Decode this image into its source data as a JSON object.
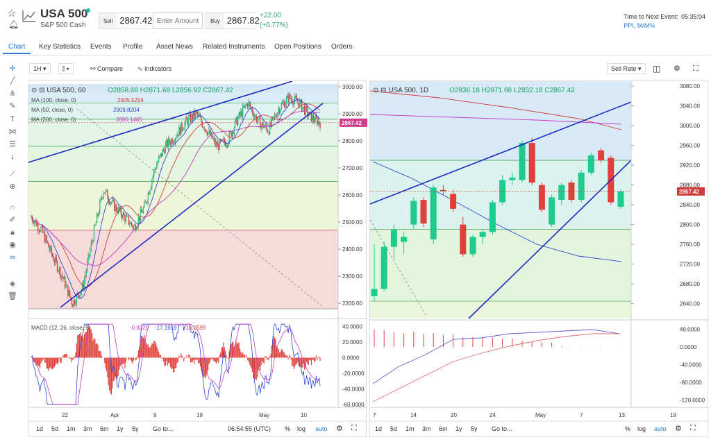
{
  "header": {
    "instrument": "USA 500",
    "subtitle": "S&P 500 Cash",
    "sell_label": "Sell",
    "sell_price": "2867.42",
    "amount_placeholder": "Enter Amount",
    "buy_label": "Buy",
    "buy_price": "2867.82",
    "change_abs": "+22.00",
    "change_pct": "(+0.77%)",
    "event_label": "Time to Next Event:",
    "event_time": "05:35:04",
    "event_link": "PPI, M/M%"
  },
  "tabs": [
    "Chart",
    "Key Statistics",
    "Events",
    "Profile",
    "Asset News",
    "Related Instruments",
    "Open Positions",
    "Orders"
  ],
  "chart_toolbar": {
    "interval": "1H",
    "compare": "Compare",
    "indicators": "Indicators",
    "sell_rate": "Sell Rate"
  },
  "colors": {
    "accent": "#2b7bd5",
    "bull": "#1ecb8c",
    "bear": "#e0403a",
    "trend": "#1a2bbf"
  },
  "left_chart": {
    "legend": {
      "symbol": "USA 500, 60",
      "O": "2858.68",
      "H": "2871.68",
      "L": "2856.92",
      "C": "2867.42",
      "ma100_label": "MA (100, close, 0)",
      "ma100_value": "2905.5254",
      "ma50_label": "MA (50, close, 0)",
      "ma50_value": "2909.8204",
      "ma200_label": "MA (200, close, 0)",
      "ma200_value": "2880.1405"
    },
    "price_ticks": [
      "3000.00",
      "2900.00",
      "2800.00",
      "2700.00",
      "2600.00",
      "2500.00",
      "2400.00",
      "2300.00",
      "2200.00"
    ],
    "last_price": "2867.42",
    "macd": {
      "label": "MACD (12, 26, close, 9)",
      "v1": "-0.8320",
      "v2": "-17.1919",
      "v3": "-16.3599",
      "ticks": [
        "40.0000",
        "20.0000",
        "0.0000",
        "-20.0000",
        "-40.0000",
        "-60.0000"
      ]
    },
    "x_ticks": [
      "22",
      "Apr",
      "9",
      "19",
      "May",
      "10"
    ],
    "ranges": [
      "1d",
      "5d",
      "1m",
      "3m",
      "6m",
      "1y",
      "5y",
      "Go to..."
    ],
    "clock": "06:54:55 (UTC)",
    "opts": [
      "%",
      "log",
      "auto"
    ]
  },
  "right_chart": {
    "legend": {
      "symbol": "USA 500, 1D",
      "O": "2836.18",
      "H": "2871.68",
      "L": "2832.18",
      "C": "2867.42"
    },
    "price_ticks": [
      "3080.00",
      "3040.00",
      "3000.00",
      "2960.00",
      "2920.00",
      "2880.00",
      "2840.00",
      "2800.00",
      "2760.00",
      "2720.00",
      "2680.00",
      "2640.00"
    ],
    "last_price": "2867.42",
    "macd_ticks": [
      "40.0000",
      "0.0000",
      "-40.0000",
      "-80.0000",
      "-120.0000"
    ],
    "x_ticks": [
      "7",
      "14",
      "20",
      "24",
      "May",
      "7",
      "13",
      "19"
    ],
    "ranges": [
      "1d",
      "5d",
      "1m",
      "3m",
      "6m",
      "1y",
      "5y",
      "Go to..."
    ],
    "opts": [
      "%",
      "log",
      "auto"
    ]
  },
  "chart_data": [
    {
      "type": "candlestick",
      "title": "USA 500, 60",
      "ylim": [
        2180,
        3010
      ],
      "x_ticks": [
        "22",
        "Apr",
        "9",
        "19",
        "May",
        "10"
      ],
      "close_path": [
        2520,
        2470,
        2380,
        2300,
        2200,
        2260,
        2450,
        2620,
        2560,
        2520,
        2480,
        2560,
        2700,
        2780,
        2820,
        2870,
        2900,
        2840,
        2780,
        2800,
        2880,
        2940,
        2870,
        2840,
        2920,
        2960,
        2940,
        2890,
        2867
      ]
    },
    {
      "type": "candlestick",
      "title": "USA 500, 1D",
      "ylim": [
        2610,
        3090
      ],
      "x_ticks": [
        "7",
        "14",
        "20",
        "24",
        "May",
        "7",
        "13",
        "19"
      ],
      "candles": [
        {
          "o": 2655,
          "c": 2670,
          "h": 2760,
          "l": 2645
        },
        {
          "o": 2670,
          "c": 2755,
          "h": 2765,
          "l": 2665
        },
        {
          "o": 2755,
          "c": 2790,
          "h": 2800,
          "l": 2730
        },
        {
          "o": 2765,
          "c": 2775,
          "h": 2785,
          "l": 2740
        },
        {
          "o": 2800,
          "c": 2848,
          "h": 2855,
          "l": 2790
        },
        {
          "o": 2850,
          "c": 2802,
          "h": 2855,
          "l": 2795
        },
        {
          "o": 2770,
          "c": 2875,
          "h": 2880,
          "l": 2760
        },
        {
          "o": 2870,
          "c": 2868,
          "h": 2880,
          "l": 2860
        },
        {
          "o": 2862,
          "c": 2832,
          "h": 2870,
          "l": 2825
        },
        {
          "o": 2800,
          "c": 2740,
          "h": 2815,
          "l": 2735
        },
        {
          "o": 2740,
          "c": 2775,
          "h": 2780,
          "l": 2735
        },
        {
          "o": 2775,
          "c": 2785,
          "h": 2790,
          "l": 2760
        },
        {
          "o": 2785,
          "c": 2845,
          "h": 2850,
          "l": 2780
        },
        {
          "o": 2845,
          "c": 2890,
          "h": 2900,
          "l": 2840
        },
        {
          "o": 2890,
          "c": 2895,
          "h": 2905,
          "l": 2880
        },
        {
          "o": 2890,
          "c": 2965,
          "h": 2970,
          "l": 2885
        },
        {
          "o": 2965,
          "c": 2885,
          "h": 2975,
          "l": 2880
        },
        {
          "o": 2880,
          "c": 2830,
          "h": 2885,
          "l": 2825
        },
        {
          "o": 2800,
          "c": 2855,
          "h": 2860,
          "l": 2795
        },
        {
          "o": 2850,
          "c": 2880,
          "h": 2885,
          "l": 2840
        },
        {
          "o": 2885,
          "c": 2850,
          "h": 2890,
          "l": 2845
        },
        {
          "o": 2850,
          "c": 2905,
          "h": 2910,
          "l": 2845
        },
        {
          "o": 2905,
          "c": 2940,
          "h": 2945,
          "l": 2900
        },
        {
          "o": 2950,
          "c": 2930,
          "h": 2955,
          "l": 2925
        },
        {
          "o": 2935,
          "c": 2845,
          "h": 2940,
          "l": 2840
        },
        {
          "o": 2836,
          "c": 2867,
          "h": 2871,
          "l": 2832
        }
      ]
    }
  ]
}
